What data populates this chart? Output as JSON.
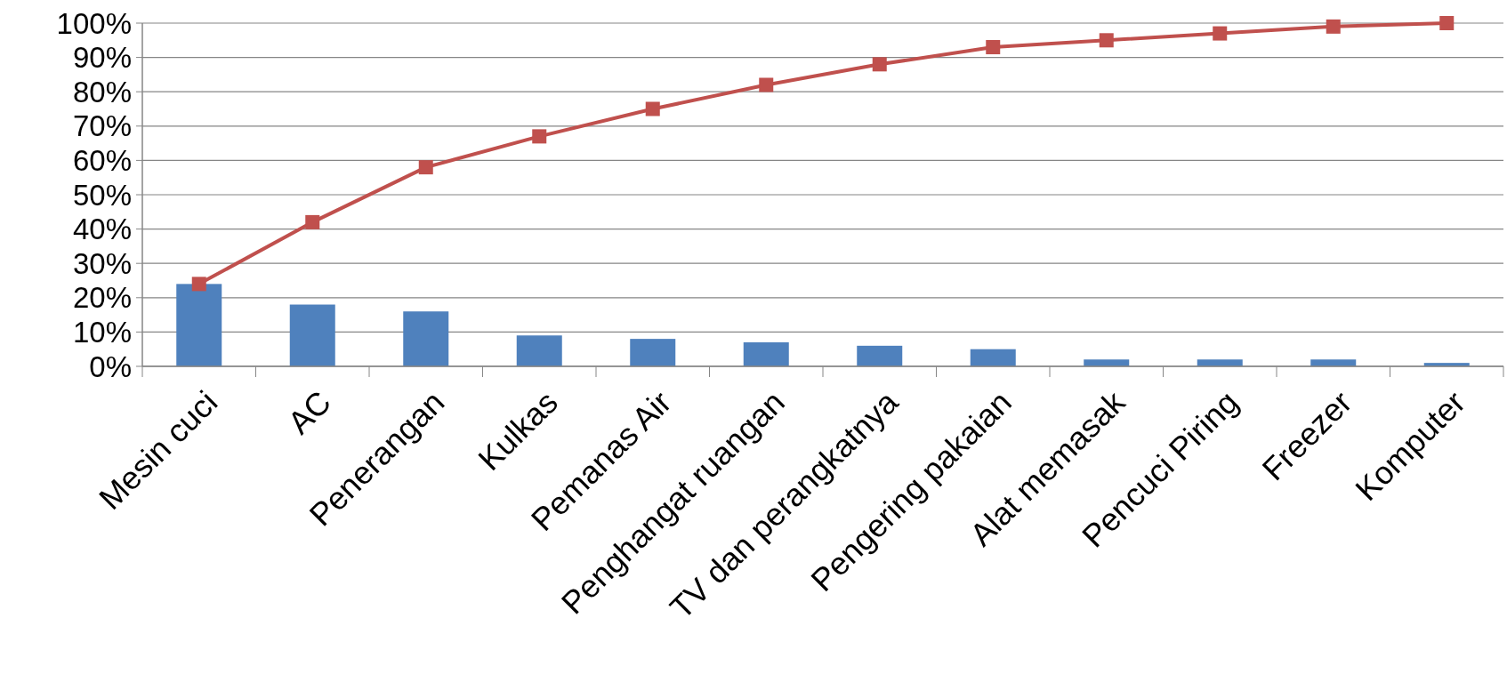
{
  "chart_data": {
    "type": "bar",
    "categories": [
      "Mesin cuci",
      "AC",
      "Penerangan",
      "Kulkas",
      "Pemanas Air",
      "Penghangat ruangan",
      "TV dan perangkatnya",
      "Pengering pakaian",
      "Alat memasak",
      "Pencuci Piring",
      "Freezer",
      "Komputer"
    ],
    "series": [
      {
        "color": "#4f81bd",
        "values": [
          24,
          18,
          16,
          9,
          8,
          7,
          6,
          5,
          2,
          2,
          2,
          1
        ]
      },
      {
        "type": "line",
        "color": "#c0504d",
        "marker": "square",
        "values": [
          24,
          42,
          58,
          67,
          75,
          82,
          88,
          93,
          95,
          97,
          99,
          100
        ]
      }
    ],
    "ylim": [
      0,
      100
    ],
    "yticks": [
      {
        "value": 0,
        "label": "0%"
      },
      {
        "value": 10,
        "label": "10%"
      },
      {
        "value": 20,
        "label": "20%"
      },
      {
        "value": 30,
        "label": "30%"
      },
      {
        "value": 40,
        "label": "40%"
      },
      {
        "value": 50,
        "label": "50%"
      },
      {
        "value": 60,
        "label": "60%"
      },
      {
        "value": 70,
        "label": "70%"
      },
      {
        "value": 80,
        "label": "80%"
      },
      {
        "value": 90,
        "label": "90%"
      },
      {
        "value": 100,
        "label": "100%"
      }
    ],
    "grid": "y"
  }
}
